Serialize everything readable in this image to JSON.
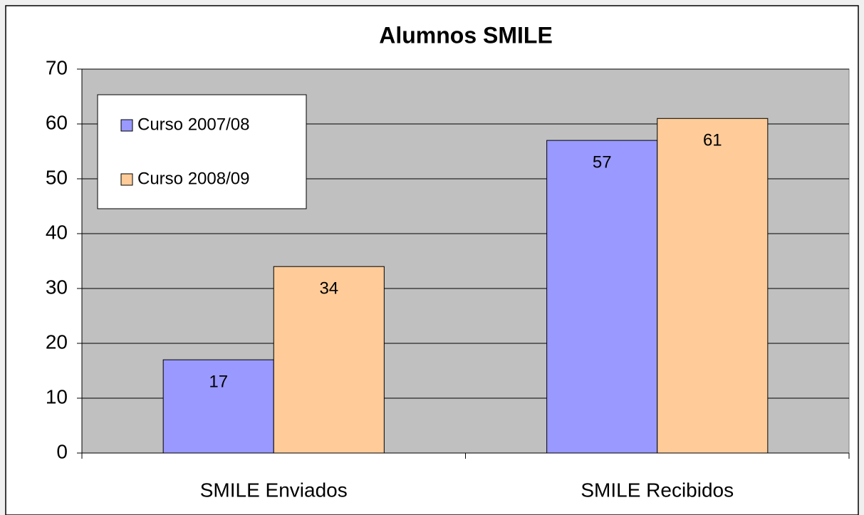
{
  "chart_data": {
    "type": "bar",
    "title": "Alumnos SMILE",
    "categories": [
      "SMILE Enviados",
      "SMILE Recibidos"
    ],
    "series": [
      {
        "name": "Curso 2007/08",
        "color": "#9999ff",
        "values": [
          17,
          57
        ]
      },
      {
        "name": "Curso 2008/09",
        "color": "#ffcc99",
        "values": [
          34,
          61
        ]
      }
    ],
    "ylim": [
      0,
      70
    ],
    "yticks": [
      0,
      10,
      20,
      30,
      40,
      50,
      60,
      70
    ],
    "grid": true,
    "legend": "upper left"
  }
}
